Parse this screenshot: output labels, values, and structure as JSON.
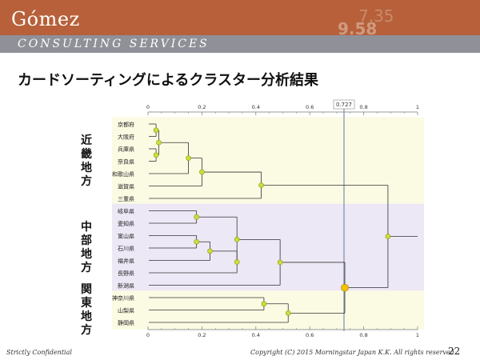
{
  "header": {
    "logo": "Gómez",
    "tagline": "CONSULTING SERVICES",
    "background_numbers": [
      "7.35",
      "9.58"
    ]
  },
  "title": "カードソーティングによるクラスター分析結果",
  "chart_data": {
    "type": "dendrogram",
    "x_ticks": [
      "0",
      "0.2",
      "0.4",
      "0.6",
      "0.8",
      "1"
    ],
    "xlim": [
      0,
      1
    ],
    "cut_value": "0.727",
    "items": [
      "京都府",
      "大阪府",
      "兵庫県",
      "奈良県",
      "和歌山県",
      "滋賀県",
      "三重県",
      "岐阜県",
      "愛知県",
      "富山県",
      "石川県",
      "福井県",
      "長野県",
      "新潟県",
      "神奈川県",
      "山梨県",
      "静岡県"
    ],
    "merges": [
      {
        "a": "京都府",
        "b": "大阪府",
        "height": 0.03
      },
      {
        "a": "兵庫県",
        "b": "奈良県",
        "height": 0.03
      },
      {
        "a": "m1",
        "b": "m2",
        "height": 0.04
      },
      {
        "a": "m3",
        "b": "和歌山県",
        "height": 0.15
      },
      {
        "a": "m4",
        "b": "滋賀県",
        "height": 0.2
      },
      {
        "a": "m5",
        "b": "三重県",
        "height": 0.42
      },
      {
        "a": "岐阜県",
        "b": "愛知県",
        "height": 0.18
      },
      {
        "a": "富山県",
        "b": "石川県",
        "height": 0.18
      },
      {
        "a": "m8",
        "b": "福井県",
        "height": 0.23
      },
      {
        "a": "m9",
        "b": "長野県",
        "height": 0.33
      },
      {
        "a": "m7",
        "b": "m10",
        "height": 0.33
      },
      {
        "a": "m11",
        "b": "新潟県",
        "height": 0.49
      },
      {
        "a": "神奈川県",
        "b": "山梨県",
        "height": 0.43
      },
      {
        "a": "m13",
        "b": "静岡県",
        "height": 0.52
      },
      {
        "a": "m12",
        "b": "m14",
        "height": 0.73
      },
      {
        "a": "m6",
        "b": "m15",
        "height": 0.89
      }
    ],
    "groups": [
      {
        "label": "近畿地方",
        "first": 0,
        "last": 6,
        "color": "#fbfbe4"
      },
      {
        "label": "中部地方",
        "first": 7,
        "last": 13,
        "color": "#ede8f6"
      },
      {
        "label": "関東地方",
        "first": 14,
        "last": 16,
        "color": "#fbfbe4"
      }
    ],
    "colors": {
      "node": "#cddc3c",
      "node_stroke": "#8a9a10",
      "cut_node": "#f2c200",
      "line": "#333333",
      "axis": "#777777",
      "cut_line": "#7f8aa8"
    }
  },
  "footer": {
    "confidential": "Strictly Confidential",
    "copyright": "Copyright (C) 2015 Morningstar Japan K.K.  All rights reserved.",
    "page": "22"
  }
}
